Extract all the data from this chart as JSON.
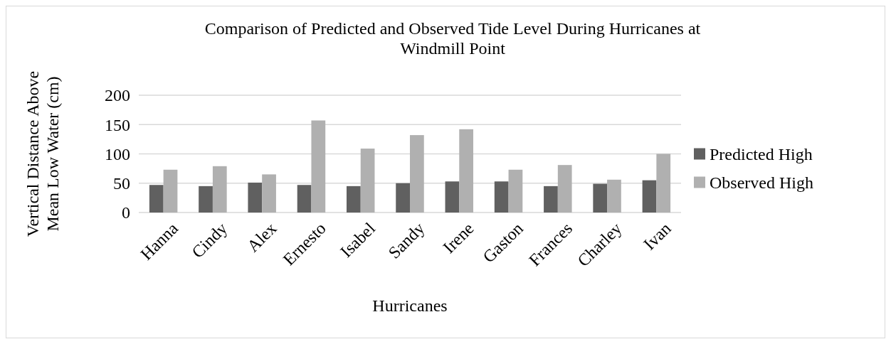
{
  "chart_data": {
    "type": "bar",
    "title": "Comparison of Predicted and Observed Tide Level During Hurricanes at Windmill Point",
    "xlabel": "Hurricanes",
    "ylabel": "Vertical Distance Above Mean Low Water (cm)",
    "categories": [
      "Hanna",
      "Cindy",
      "Alex",
      "Ernesto",
      "Isabel",
      "Sandy",
      "Irene",
      "Gaston",
      "Frances",
      "Charley",
      "Ivan"
    ],
    "series": [
      {
        "name": "Predicted High",
        "color": "#606060",
        "values": [
          47,
          45,
          51,
          47,
          45,
          50,
          53,
          53,
          45,
          49,
          55
        ]
      },
      {
        "name": "Observed High",
        "color": "#b0b0b0",
        "values": [
          73,
          79,
          65,
          157,
          109,
          132,
          142,
          73,
          81,
          56,
          100
        ]
      }
    ],
    "ylim": [
      0,
      200
    ],
    "yticks": [
      0,
      50,
      100,
      150,
      200
    ],
    "grid": "y",
    "legend": "right"
  }
}
